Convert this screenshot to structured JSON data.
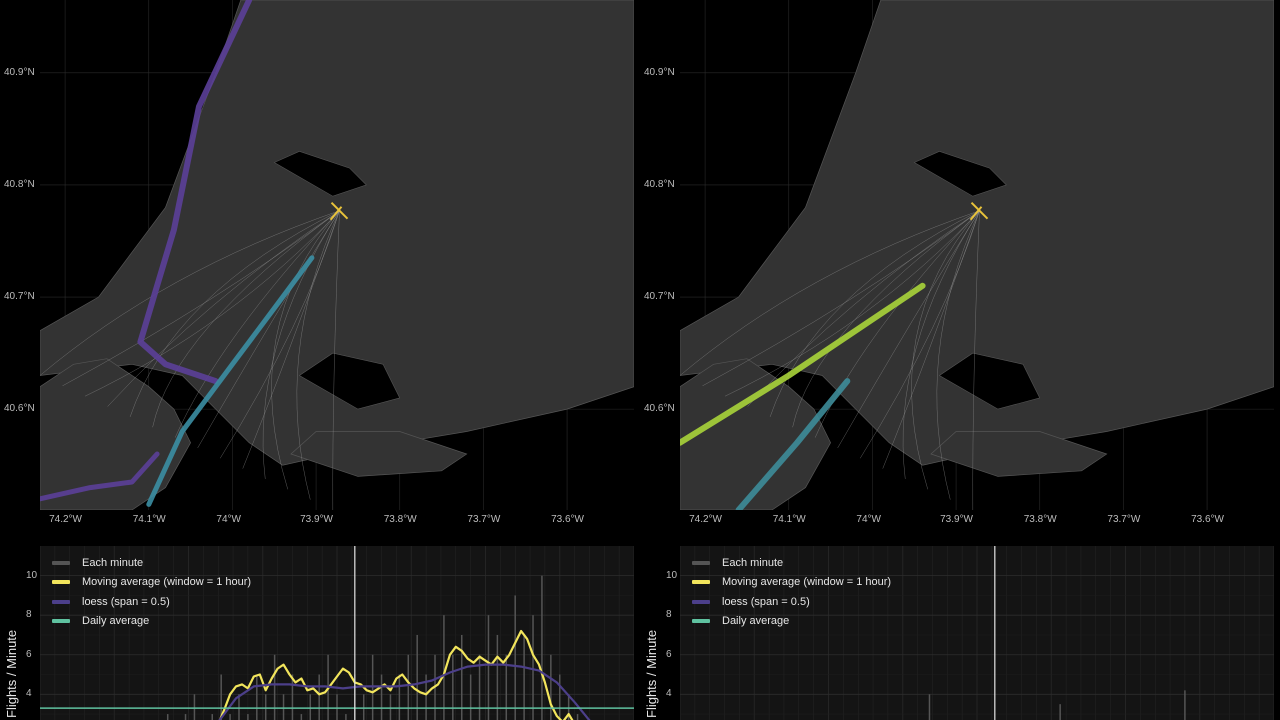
{
  "chart_data": [
    {
      "type": "map",
      "panel": "left-map",
      "x_ticks": [
        "74.2°W",
        "74.1°W",
        "74°W",
        "73.9°W",
        "73.8°W",
        "73.7°W",
        "73.6°W"
      ],
      "x_values": [
        -74.2,
        -74.1,
        -74.0,
        -73.9,
        -73.8,
        -73.7,
        -73.6
      ],
      "y_ticks": [
        "40.9°N",
        "40.8°N",
        "40.7°N",
        "40.6°N"
      ],
      "y_values": [
        40.9,
        40.8,
        40.7,
        40.6
      ],
      "xlim": [
        -74.23,
        -73.52
      ],
      "ylim": [
        40.51,
        40.965
      ],
      "airport": {
        "lon": -73.872,
        "lat": 40.777
      },
      "routes": [
        {
          "name": "north-approach",
          "color": "#5b3f98",
          "width": 6,
          "points": [
            [
              -73.98,
              40.965
            ],
            [
              -74.04,
              40.87
            ],
            [
              -74.07,
              40.76
            ],
            [
              -74.09,
              40.71
            ],
            [
              -74.11,
              40.66
            ],
            [
              -74.08,
              40.64
            ],
            [
              -74.02,
              40.625
            ]
          ]
        },
        {
          "name": "south-approach",
          "color": "#3b8ea3",
          "width": 5,
          "points": [
            [
              -74.1,
              40.515
            ],
            [
              -74.06,
              40.58
            ],
            [
              -74.0,
              40.64
            ],
            [
              -73.95,
              40.69
            ],
            [
              -73.905,
              40.735
            ]
          ]
        },
        {
          "name": "south-loop",
          "color": "#5b3f98",
          "width": 5,
          "points": [
            [
              -74.23,
              40.52
            ],
            [
              -74.17,
              40.53
            ],
            [
              -74.12,
              40.535
            ],
            [
              -74.09,
              40.56
            ]
          ]
        }
      ]
    },
    {
      "type": "map",
      "panel": "right-map",
      "x_ticks": [
        "74.2°W",
        "74.1°W",
        "74°W",
        "73.9°W",
        "73.8°W",
        "73.7°W",
        "73.6°W"
      ],
      "x_values": [
        -74.2,
        -74.1,
        -74.0,
        -73.9,
        -73.8,
        -73.7,
        -73.6
      ],
      "y_ticks": [
        "40.9°N",
        "40.8°N",
        "40.7°N",
        "40.6°N"
      ],
      "y_values": [
        40.9,
        40.8,
        40.7,
        40.6
      ],
      "xlim": [
        -74.23,
        -73.52
      ],
      "ylim": [
        40.51,
        40.965
      ],
      "airport": {
        "lon": -73.872,
        "lat": 40.777
      },
      "routes": [
        {
          "name": "west-departure",
          "color": "#a8d43a",
          "width": 6,
          "points": [
            [
              -74.23,
              40.57
            ],
            [
              -74.1,
              40.63
            ],
            [
              -73.99,
              40.685
            ],
            [
              -73.94,
              40.71
            ]
          ]
        },
        {
          "name": "southwest-departure",
          "color": "#3d8c99",
          "width": 6,
          "points": [
            [
              -74.16,
              40.51
            ],
            [
              -74.09,
              40.57
            ],
            [
              -74.03,
              40.625
            ]
          ]
        }
      ]
    },
    {
      "type": "line",
      "panel": "left-timeseries",
      "ylabel": "Flights / Minute",
      "y_ticks": [
        "4",
        "6",
        "8",
        "10"
      ],
      "y_values": [
        4,
        6,
        8,
        10
      ],
      "ylim": [
        2.7,
        11.5
      ],
      "x_range": [
        0,
        100
      ],
      "vline_x": 53,
      "daily_average": 3.3,
      "series": [
        {
          "name": "Each minute",
          "color": "#555555",
          "values": [
            2,
            3,
            2,
            3,
            4,
            2,
            3,
            5,
            3,
            4,
            3,
            5,
            4,
            6,
            4,
            5,
            3,
            4,
            5,
            6,
            4,
            3,
            5,
            4,
            6,
            5,
            4,
            5,
            6,
            7,
            5,
            6,
            8,
            6,
            7,
            5,
            6,
            8,
            7,
            6,
            9,
            7,
            8,
            10,
            6,
            5,
            4,
            3,
            2
          ],
          "x": [
            20,
            21.5,
            23,
            24.5,
            26,
            27.5,
            29,
            30.5,
            32,
            33.5,
            35,
            36.5,
            38,
            39.5,
            41,
            42.5,
            44,
            45.5,
            47,
            48.5,
            50,
            51.5,
            53,
            54.5,
            56,
            57.5,
            59,
            60.5,
            62,
            63.5,
            65,
            66.5,
            68,
            69.5,
            71,
            72.5,
            74,
            75.5,
            77,
            78.5,
            80,
            81.5,
            83,
            84.5,
            86,
            87.5,
            89,
            90.5,
            92
          ]
        },
        {
          "name": "Moving average (window = 1 hour)",
          "color": "#f2e55c",
          "x": [
            30,
            31,
            32,
            33,
            34,
            35,
            36,
            37,
            38,
            39,
            40,
            41,
            42,
            43,
            44,
            45,
            46,
            47,
            48,
            49,
            50,
            51,
            52,
            53,
            54,
            55,
            56,
            57,
            58,
            59,
            60,
            61,
            62,
            63,
            64,
            65,
            66,
            67,
            68,
            69,
            70,
            71,
            72,
            73,
            74,
            75,
            76,
            77,
            78,
            79,
            80,
            81,
            82,
            83,
            84,
            85,
            86,
            87,
            88,
            89,
            90,
            91,
            92,
            93
          ],
          "values": [
            2.5,
            3.2,
            4.0,
            4.4,
            4.5,
            4.3,
            4.9,
            5.0,
            4.2,
            4.8,
            5.3,
            5.5,
            5.0,
            4.6,
            4.8,
            4.2,
            4.3,
            4.0,
            4.1,
            4.5,
            4.9,
            5.3,
            5.1,
            4.6,
            4.5,
            4.2,
            4.1,
            4.3,
            4.5,
            4.2,
            4.8,
            5.0,
            4.6,
            4.3,
            4.1,
            4.0,
            4.3,
            4.5,
            5.0,
            6.0,
            6.4,
            6.2,
            5.8,
            5.6,
            5.9,
            5.7,
            5.5,
            5.9,
            5.6,
            6.0,
            6.6,
            7.2,
            6.8,
            6.0,
            5.5,
            4.6,
            3.5,
            2.9,
            2.6,
            3.0,
            2.5,
            2.3,
            2.2,
            2.0
          ]
        },
        {
          "name": "loess (span = 0.5)",
          "color": "#4c3f8a",
          "x": [
            30,
            33,
            36,
            39,
            42,
            45,
            48,
            51,
            54,
            57,
            60,
            63,
            66,
            69,
            72,
            75,
            78,
            81,
            84,
            87,
            90,
            93
          ],
          "values": [
            2.6,
            3.8,
            4.4,
            4.5,
            4.5,
            4.4,
            4.4,
            4.3,
            4.4,
            4.4,
            4.4,
            4.5,
            4.7,
            5.1,
            5.4,
            5.5,
            5.5,
            5.4,
            5.2,
            4.6,
            3.6,
            2.5
          ]
        },
        {
          "name": "Daily average",
          "color": "#5fc2a0",
          "values": [
            3.3
          ]
        }
      ]
    },
    {
      "type": "line",
      "panel": "right-timeseries",
      "ylabel": "Flights / Minute",
      "y_ticks": [
        "4",
        "6",
        "8",
        "10"
      ],
      "y_values": [
        4,
        6,
        8,
        10
      ],
      "ylim": [
        2.7,
        11.5
      ],
      "x_range": [
        0,
        100
      ],
      "vline_x": 53,
      "series": [
        {
          "name": "Each minute",
          "color": "#555555",
          "values": [
            4,
            3.5,
            4.2
          ],
          "x": [
            42,
            64,
            85
          ]
        },
        {
          "name": "Moving average (window = 1 hour)",
          "color": "#f2e55c",
          "values": []
        },
        {
          "name": "loess (span = 0.5)",
          "color": "#4c3f8a",
          "values": []
        },
        {
          "name": "Daily average",
          "color": "#5fc2a0",
          "values": []
        }
      ]
    }
  ],
  "legend": {
    "each_minute": "Each minute",
    "moving_average": "Moving average (window = 1 hour)",
    "loess": "loess (span = 0.5)",
    "daily_average": "Daily average"
  },
  "colors": {
    "background": "#000000",
    "land": "#333333",
    "grid": "#2a2a2a",
    "gray_track": "#9a9a9a",
    "airport_marker": "#e8c23a",
    "timeseries_panel": "#141414"
  }
}
